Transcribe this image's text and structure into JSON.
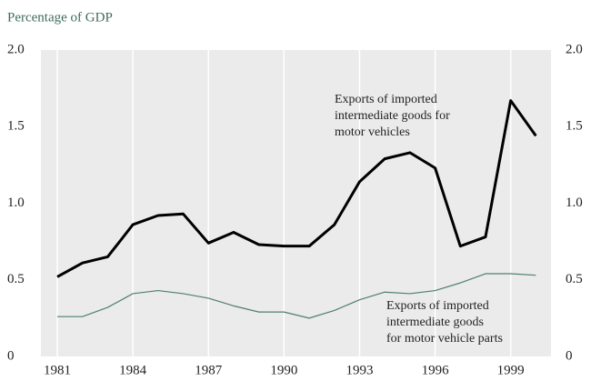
{
  "chart_data": {
    "type": "line",
    "title": "Percentage of GDP",
    "x": [
      1981,
      1982,
      1983,
      1984,
      1985,
      1986,
      1987,
      1988,
      1989,
      1990,
      1991,
      1992,
      1993,
      1994,
      1995,
      1996,
      1997,
      1998,
      1999,
      2000
    ],
    "series": [
      {
        "color": "#000000",
        "width": 3,
        "values": [
          0.52,
          0.61,
          0.65,
          0.86,
          0.92,
          0.93,
          0.74,
          0.81,
          0.73,
          0.72,
          0.72,
          0.86,
          1.14,
          1.29,
          1.33,
          1.23,
          0.72,
          0.78,
          1.67,
          1.44
        ]
      },
      {
        "color": "#4f7f6f",
        "width": 1.2,
        "values": [
          0.26,
          0.26,
          0.32,
          0.41,
          0.43,
          0.41,
          0.38,
          0.33,
          0.29,
          0.29,
          0.25,
          0.3,
          0.37,
          0.42,
          0.41,
          0.43,
          0.48,
          0.54,
          0.54,
          0.53
        ]
      }
    ],
    "annotations": [
      {
        "lines": [
          "Exports of imported",
          "intermediate goods for",
          "motor vehicles"
        ]
      },
      {
        "lines": [
          "Exports of imported",
          "intermediate goods",
          "for motor vehicle parts"
        ]
      }
    ],
    "xlim": [
      1980.35,
      2000.6
    ],
    "xticks": [
      1981,
      1984,
      1987,
      1990,
      1993,
      1996,
      1999
    ],
    "ylim": [
      0,
      2
    ],
    "yticks": [
      0,
      0.5,
      {
        "value": 1,
        "label": "1.0"
      },
      1.5,
      {
        "value": 2,
        "label": "2.0"
      }
    ],
    "y2lim": [
      0,
      2
    ],
    "y2ticks": [
      0,
      0.5,
      {
        "value": 1,
        "label": "1.0"
      },
      1.5,
      {
        "value": 2,
        "label": "2.0"
      }
    ],
    "grid": true
  }
}
